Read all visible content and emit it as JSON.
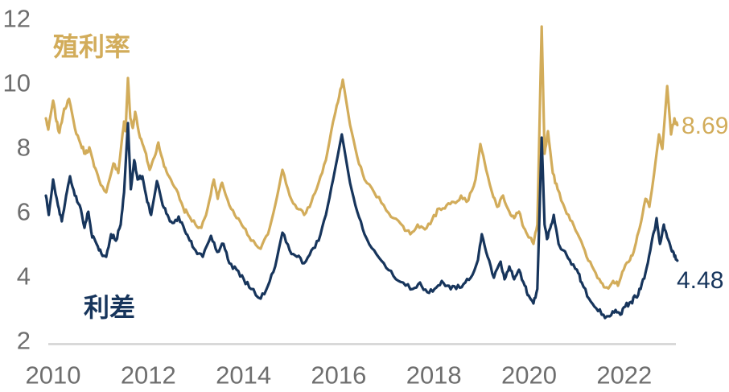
{
  "labels": {
    "yield_series": "殖利率",
    "spread_series": "利差",
    "yield_end_value": "8.69",
    "spread_end_value": "4.48"
  },
  "colors": {
    "yield": "#D2AC5A",
    "spread": "#17355C",
    "axis_text": "#6E6E6E",
    "baseline": "#D9D9D9",
    "background": "#FFFFFF"
  },
  "chart_data": {
    "type": "line",
    "title": "",
    "xlabel": "",
    "ylabel": "",
    "legend_position": "inline-annotations",
    "grid": false,
    "x_axis": {
      "ticks": [
        2010,
        2012,
        2014,
        2016,
        2018,
        2020,
        2022
      ],
      "range": [
        2010,
        2023.1
      ]
    },
    "y_axis": {
      "ticks": [
        2,
        4,
        6,
        8,
        10,
        12
      ],
      "range": [
        2,
        12.2
      ]
    },
    "noise_amplitude": 0.1,
    "noise_subdivisions": 3,
    "series": [
      {
        "name": "殖利率",
        "color": "#D2AC5A",
        "end_label": "8.69",
        "points": [
          [
            2010.0,
            8.9
          ],
          [
            2010.05,
            8.55
          ],
          [
            2010.15,
            9.45
          ],
          [
            2010.22,
            8.8
          ],
          [
            2010.28,
            8.45
          ],
          [
            2010.38,
            9.2
          ],
          [
            2010.48,
            9.5
          ],
          [
            2010.6,
            8.6
          ],
          [
            2010.72,
            8.1
          ],
          [
            2010.82,
            7.8
          ],
          [
            2010.9,
            8.0
          ],
          [
            2011.0,
            7.4
          ],
          [
            2011.1,
            7.0
          ],
          [
            2011.25,
            6.6
          ],
          [
            2011.4,
            7.5
          ],
          [
            2011.5,
            7.2
          ],
          [
            2011.58,
            8.3
          ],
          [
            2011.62,
            8.8
          ],
          [
            2011.65,
            8.5
          ],
          [
            2011.7,
            10.15
          ],
          [
            2011.75,
            8.9
          ],
          [
            2011.8,
            8.6
          ],
          [
            2011.85,
            9.1
          ],
          [
            2011.95,
            8.3
          ],
          [
            2012.05,
            7.9
          ],
          [
            2012.15,
            7.3
          ],
          [
            2012.25,
            7.7
          ],
          [
            2012.33,
            8.15
          ],
          [
            2012.45,
            7.4
          ],
          [
            2012.55,
            7.1
          ],
          [
            2012.7,
            6.7
          ],
          [
            2012.85,
            6.1
          ],
          [
            2012.95,
            5.9
          ],
          [
            2013.1,
            5.6
          ],
          [
            2013.22,
            5.5
          ],
          [
            2013.35,
            6.1
          ],
          [
            2013.48,
            7.0
          ],
          [
            2013.56,
            6.4
          ],
          [
            2013.65,
            6.9
          ],
          [
            2013.8,
            6.2
          ],
          [
            2013.95,
            5.8
          ],
          [
            2014.1,
            5.5
          ],
          [
            2014.25,
            5.1
          ],
          [
            2014.45,
            4.85
          ],
          [
            2014.6,
            5.3
          ],
          [
            2014.75,
            6.2
          ],
          [
            2014.9,
            7.3
          ],
          [
            2015.05,
            6.5
          ],
          [
            2015.2,
            6.1
          ],
          [
            2015.35,
            5.9
          ],
          [
            2015.5,
            6.3
          ],
          [
            2015.65,
            6.9
          ],
          [
            2015.8,
            7.6
          ],
          [
            2015.95,
            8.8
          ],
          [
            2016.05,
            9.4
          ],
          [
            2016.15,
            10.1
          ],
          [
            2016.3,
            8.7
          ],
          [
            2016.45,
            7.7
          ],
          [
            2016.6,
            7.0
          ],
          [
            2016.8,
            6.6
          ],
          [
            2017.0,
            6.2
          ],
          [
            2017.2,
            5.8
          ],
          [
            2017.4,
            5.55
          ],
          [
            2017.55,
            5.3
          ],
          [
            2017.7,
            5.6
          ],
          [
            2017.85,
            5.45
          ],
          [
            2018.0,
            5.75
          ],
          [
            2018.15,
            6.1
          ],
          [
            2018.3,
            6.2
          ],
          [
            2018.45,
            6.3
          ],
          [
            2018.6,
            6.5
          ],
          [
            2018.75,
            6.35
          ],
          [
            2018.9,
            7.0
          ],
          [
            2019.0,
            8.1
          ],
          [
            2019.12,
            7.3
          ],
          [
            2019.27,
            6.45
          ],
          [
            2019.35,
            6.15
          ],
          [
            2019.47,
            6.5
          ],
          [
            2019.6,
            6.0
          ],
          [
            2019.7,
            5.8
          ],
          [
            2019.8,
            6.0
          ],
          [
            2019.9,
            5.5
          ],
          [
            2020.0,
            5.2
          ],
          [
            2020.1,
            5.0
          ],
          [
            2020.18,
            5.6
          ],
          [
            2020.27,
            11.75
          ],
          [
            2020.33,
            7.8
          ],
          [
            2020.4,
            8.5
          ],
          [
            2020.5,
            7.2
          ],
          [
            2020.6,
            6.7
          ],
          [
            2020.75,
            6.1
          ],
          [
            2020.9,
            5.7
          ],
          [
            2021.05,
            5.2
          ],
          [
            2021.2,
            4.6
          ],
          [
            2021.35,
            4.2
          ],
          [
            2021.5,
            3.8
          ],
          [
            2021.62,
            3.65
          ],
          [
            2021.75,
            3.85
          ],
          [
            2021.85,
            3.7
          ],
          [
            2021.97,
            4.2
          ],
          [
            2022.1,
            4.5
          ],
          [
            2022.2,
            4.9
          ],
          [
            2022.3,
            5.5
          ],
          [
            2022.42,
            6.4
          ],
          [
            2022.5,
            6.15
          ],
          [
            2022.6,
            7.2
          ],
          [
            2022.7,
            8.4
          ],
          [
            2022.77,
            7.95
          ],
          [
            2022.87,
            9.9
          ],
          [
            2022.95,
            8.4
          ],
          [
            2023.02,
            8.9
          ],
          [
            2023.08,
            8.69
          ]
        ]
      },
      {
        "name": "利差",
        "color": "#17355C",
        "end_label": "4.48",
        "points": [
          [
            2010.0,
            6.5
          ],
          [
            2010.06,
            5.9
          ],
          [
            2010.15,
            7.0
          ],
          [
            2010.25,
            6.2
          ],
          [
            2010.33,
            5.7
          ],
          [
            2010.42,
            6.5
          ],
          [
            2010.5,
            7.1
          ],
          [
            2010.6,
            6.5
          ],
          [
            2010.7,
            6.2
          ],
          [
            2010.8,
            5.5
          ],
          [
            2010.88,
            6.0
          ],
          [
            2010.96,
            5.2
          ],
          [
            2011.05,
            5.0
          ],
          [
            2011.15,
            4.7
          ],
          [
            2011.25,
            4.6
          ],
          [
            2011.35,
            5.3
          ],
          [
            2011.45,
            5.1
          ],
          [
            2011.55,
            5.6
          ],
          [
            2011.62,
            6.6
          ],
          [
            2011.7,
            8.75
          ],
          [
            2011.76,
            6.7
          ],
          [
            2011.83,
            7.6
          ],
          [
            2011.9,
            7.0
          ],
          [
            2012.0,
            7.1
          ],
          [
            2012.1,
            6.3
          ],
          [
            2012.18,
            5.9
          ],
          [
            2012.3,
            6.95
          ],
          [
            2012.42,
            6.2
          ],
          [
            2012.52,
            5.9
          ],
          [
            2012.62,
            5.65
          ],
          [
            2012.75,
            5.85
          ],
          [
            2012.88,
            5.4
          ],
          [
            2012.98,
            5.1
          ],
          [
            2013.1,
            4.8
          ],
          [
            2013.25,
            4.6
          ],
          [
            2013.42,
            5.25
          ],
          [
            2013.55,
            4.75
          ],
          [
            2013.68,
            5.0
          ],
          [
            2013.8,
            4.4
          ],
          [
            2013.95,
            4.2
          ],
          [
            2014.1,
            3.9
          ],
          [
            2014.25,
            3.6
          ],
          [
            2014.45,
            3.3
          ],
          [
            2014.6,
            3.7
          ],
          [
            2014.75,
            4.3
          ],
          [
            2014.9,
            5.35
          ],
          [
            2015.05,
            4.8
          ],
          [
            2015.2,
            4.6
          ],
          [
            2015.35,
            4.4
          ],
          [
            2015.5,
            4.8
          ],
          [
            2015.65,
            5.1
          ],
          [
            2015.8,
            5.9
          ],
          [
            2015.95,
            7.0
          ],
          [
            2016.13,
            8.4
          ],
          [
            2016.3,
            6.9
          ],
          [
            2016.45,
            6.0
          ],
          [
            2016.6,
            5.3
          ],
          [
            2016.8,
            4.8
          ],
          [
            2017.0,
            4.4
          ],
          [
            2017.2,
            4.0
          ],
          [
            2017.4,
            3.8
          ],
          [
            2017.6,
            3.6
          ],
          [
            2017.75,
            3.8
          ],
          [
            2017.9,
            3.5
          ],
          [
            2018.05,
            3.6
          ],
          [
            2018.2,
            3.85
          ],
          [
            2018.35,
            3.7
          ],
          [
            2018.5,
            3.6
          ],
          [
            2018.65,
            3.75
          ],
          [
            2018.8,
            3.95
          ],
          [
            2018.95,
            4.5
          ],
          [
            2019.03,
            5.3
          ],
          [
            2019.15,
            4.6
          ],
          [
            2019.28,
            3.95
          ],
          [
            2019.42,
            4.45
          ],
          [
            2019.5,
            3.9
          ],
          [
            2019.6,
            4.3
          ],
          [
            2019.7,
            3.9
          ],
          [
            2019.8,
            4.2
          ],
          [
            2019.92,
            3.7
          ],
          [
            2020.0,
            3.4
          ],
          [
            2020.1,
            3.15
          ],
          [
            2020.18,
            3.6
          ],
          [
            2020.27,
            8.3
          ],
          [
            2020.33,
            5.6
          ],
          [
            2020.38,
            5.15
          ],
          [
            2020.45,
            5.5
          ],
          [
            2020.52,
            5.9
          ],
          [
            2020.62,
            5.0
          ],
          [
            2020.72,
            4.8
          ],
          [
            2020.85,
            4.5
          ],
          [
            2021.0,
            4.2
          ],
          [
            2021.1,
            3.8
          ],
          [
            2021.25,
            3.3
          ],
          [
            2021.4,
            3.0
          ],
          [
            2021.55,
            2.8
          ],
          [
            2021.68,
            2.75
          ],
          [
            2021.8,
            2.95
          ],
          [
            2021.9,
            2.8
          ],
          [
            2022.0,
            3.05
          ],
          [
            2022.12,
            3.2
          ],
          [
            2022.22,
            3.35
          ],
          [
            2022.32,
            3.6
          ],
          [
            2022.42,
            4.1
          ],
          [
            2022.52,
            4.8
          ],
          [
            2022.6,
            5.4
          ],
          [
            2022.65,
            5.8
          ],
          [
            2022.72,
            5.0
          ],
          [
            2022.8,
            5.6
          ],
          [
            2022.87,
            5.2
          ],
          [
            2022.95,
            4.85
          ],
          [
            2023.02,
            4.6
          ],
          [
            2023.08,
            4.48
          ]
        ]
      }
    ]
  }
}
